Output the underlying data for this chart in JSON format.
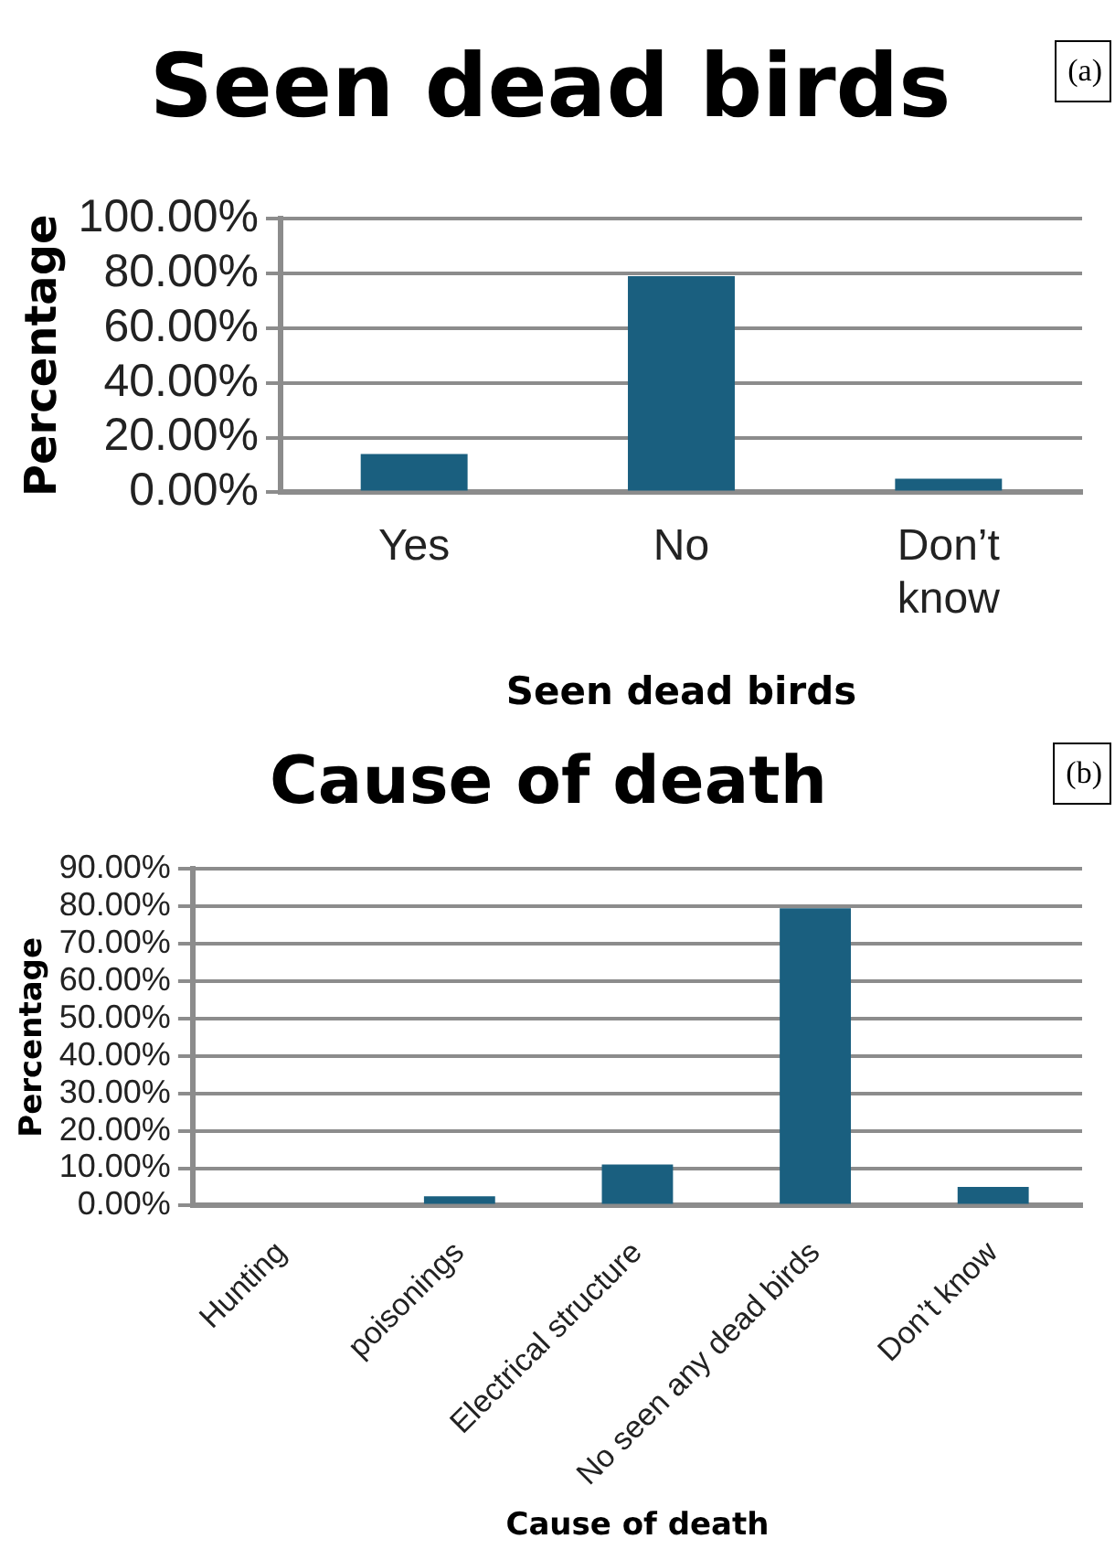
{
  "chart_data": [
    {
      "type": "bar",
      "title": "Seen dead birds",
      "xlabel": "Seen dead birds",
      "ylabel": "Percentage",
      "categories": [
        "Yes",
        "No",
        "Don’t know"
      ],
      "values": [
        14,
        79,
        5
      ],
      "color": "#1a5f7f",
      "ylim": [
        0,
        100
      ],
      "yticks": [
        {
          "value": 0,
          "label": "0.00%"
        },
        {
          "value": 20,
          "label": "20.00%"
        },
        {
          "value": 40,
          "label": "40.00%"
        },
        {
          "value": 60,
          "label": "60.00%"
        },
        {
          "value": 80,
          "label": "80.00%"
        },
        {
          "value": 100,
          "label": "100.00%"
        }
      ],
      "grid": "y",
      "annotations": [
        "(a)"
      ]
    },
    {
      "type": "bar",
      "title": "Cause of death",
      "xlabel": "Cause of death",
      "ylabel": "Percentage",
      "categories": [
        "Hunting",
        "poisonings",
        "Electrical structure",
        "No seen any dead birds",
        "Don’t know"
      ],
      "values": [
        0,
        2.5,
        11,
        79.5,
        5
      ],
      "color": "#1a5f7f",
      "ylim": [
        0,
        90
      ],
      "yticks": [
        {
          "value": 0,
          "label": "0.00%"
        },
        {
          "value": 10,
          "label": "10.00%"
        },
        {
          "value": 20,
          "label": "20.00%"
        },
        {
          "value": 30,
          "label": "30.00%"
        },
        {
          "value": 40,
          "label": "40.00%"
        },
        {
          "value": 50,
          "label": "50.00%"
        },
        {
          "value": 60,
          "label": "60.00%"
        },
        {
          "value": 70,
          "label": "70.00%"
        },
        {
          "value": 80,
          "label": "80.00%"
        },
        {
          "value": 90,
          "label": "90.00%"
        }
      ],
      "grid": "y",
      "annotations": [
        "(b)"
      ]
    }
  ]
}
